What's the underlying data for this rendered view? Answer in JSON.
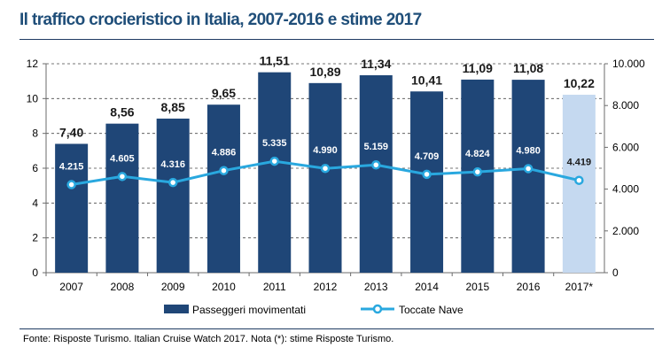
{
  "title": "Il traffico crocieristico in Italia, 2007-2016 e stime 2017",
  "footer": "Fonte: Risposte Turismo. Italian Cruise Watch 2017. Nota (*): stime Risposte  Turismo.",
  "colors": {
    "bar": "#1f4677",
    "bar_estimate": "#c5d9f0",
    "line": "#29a8df",
    "title": "#1f4e79"
  },
  "chart_data": {
    "type": "bar",
    "categories": [
      "2007",
      "2008",
      "2009",
      "2010",
      "2011",
      "2012",
      "2013",
      "2014",
      "2015",
      "2016",
      "2017*"
    ],
    "series": [
      {
        "name": "Passeggeri movimentati",
        "type": "bar",
        "axis": "left",
        "values": [
          7.4,
          8.56,
          8.85,
          9.65,
          11.51,
          10.89,
          11.34,
          10.41,
          11.09,
          11.08,
          10.22
        ],
        "labels": [
          "7,40",
          "8,56",
          "8,85",
          "9,65",
          "11,51",
          "10,89",
          "11,34",
          "10,41",
          "11,09",
          "11,08",
          "10,22"
        ],
        "estimate_index": 10
      },
      {
        "name": "Toccate Nave",
        "type": "line",
        "axis": "right",
        "values": [
          4215,
          4605,
          4316,
          4886,
          5335,
          4990,
          5159,
          4709,
          4824,
          4980,
          4419
        ],
        "labels": [
          "4.215",
          "4.605",
          "4.316",
          "4.886",
          "5.335",
          "4.990",
          "5.159",
          "4.709",
          "4.824",
          "4.980",
          "4.419"
        ]
      }
    ],
    "ylim": [
      0,
      12
    ],
    "yticks": [
      0,
      2,
      4,
      6,
      8,
      10,
      12
    ],
    "ytick_labels": [
      "0",
      "2",
      "4",
      "6",
      "8",
      "10",
      "12"
    ],
    "y2lim": [
      0,
      10000
    ],
    "y2ticks": [
      0,
      2000,
      4000,
      6000,
      8000,
      10000
    ],
    "y2tick_labels": [
      "0",
      "2.000",
      "4.000",
      "6.000",
      "8.000",
      "10.000"
    ],
    "grid": true,
    "legend_position": "bottom"
  }
}
